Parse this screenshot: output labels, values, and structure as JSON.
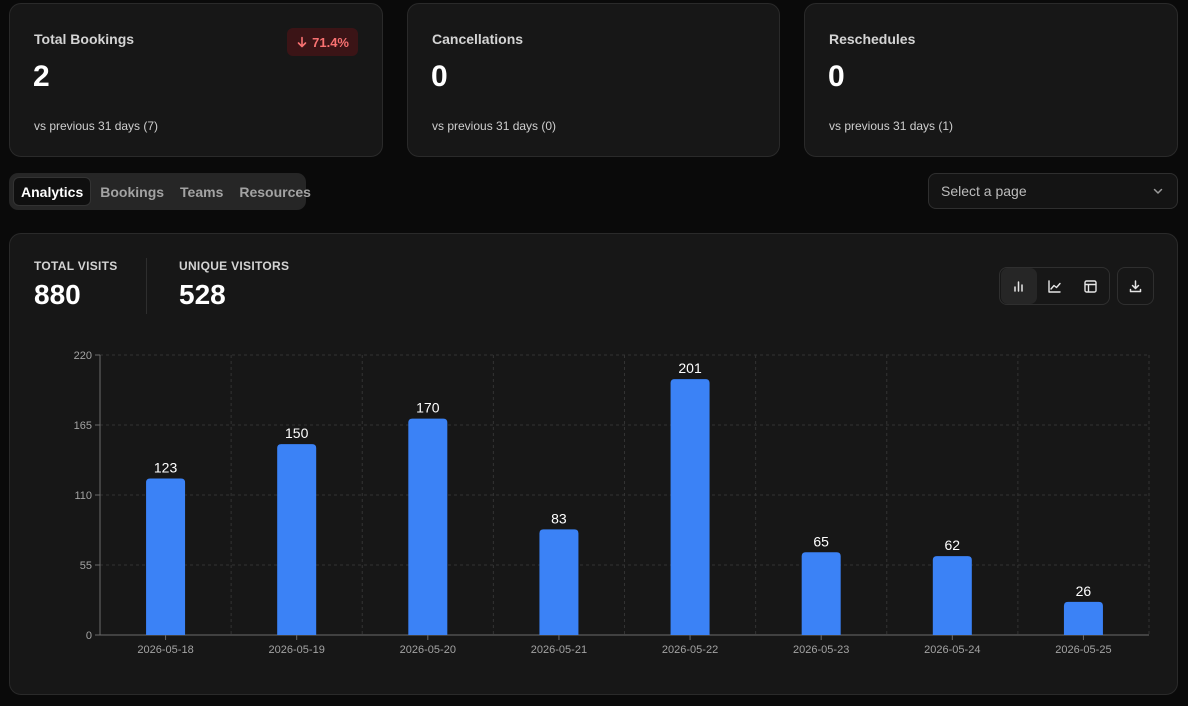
{
  "stats": [
    {
      "label": "Total Bookings",
      "value": "2",
      "compare": "vs previous 31 days (7)",
      "delta": "71.4%",
      "delta_direction": "down"
    },
    {
      "label": "Cancellations",
      "value": "0",
      "compare": "vs previous 31 days (0)"
    },
    {
      "label": "Reschedules",
      "value": "0",
      "compare": "vs previous 31 days (1)"
    }
  ],
  "tabs": [
    {
      "label": "Analytics",
      "active": true
    },
    {
      "label": "Bookings",
      "active": false
    },
    {
      "label": "Teams",
      "active": false
    },
    {
      "label": "Resources",
      "active": false
    }
  ],
  "page_select": {
    "placeholder": "Select a page",
    "icon": "chevron-down-icon"
  },
  "metrics": {
    "total_visits": {
      "label": "TOTAL VISITS",
      "value": "880"
    },
    "unique_visitors": {
      "label": "UNIQUE VISITORS",
      "value": "528"
    }
  },
  "view_toggle": {
    "buttons": [
      {
        "icon": "bar-chart-icon",
        "active": true
      },
      {
        "icon": "line-chart-icon",
        "active": false
      },
      {
        "icon": "table-icon",
        "active": false
      }
    ],
    "download_icon": "download-icon"
  },
  "colors": {
    "bar": "#3b82f6",
    "delta_negative": "#f87171",
    "background": "#0a0a0a",
    "card": "#171717"
  },
  "chart_data": {
    "type": "bar",
    "categories": [
      "2026-05-18",
      "2026-05-19",
      "2026-05-20",
      "2026-05-21",
      "2026-05-22",
      "2026-05-23",
      "2026-05-24",
      "2026-05-25"
    ],
    "values": [
      123,
      150,
      170,
      83,
      201,
      65,
      62,
      26
    ],
    "ylim": [
      0,
      220
    ],
    "yticks": [
      0,
      55,
      110,
      165,
      220
    ],
    "grid": true,
    "data_labels": true,
    "title": "",
    "xlabel": "",
    "ylabel": ""
  }
}
